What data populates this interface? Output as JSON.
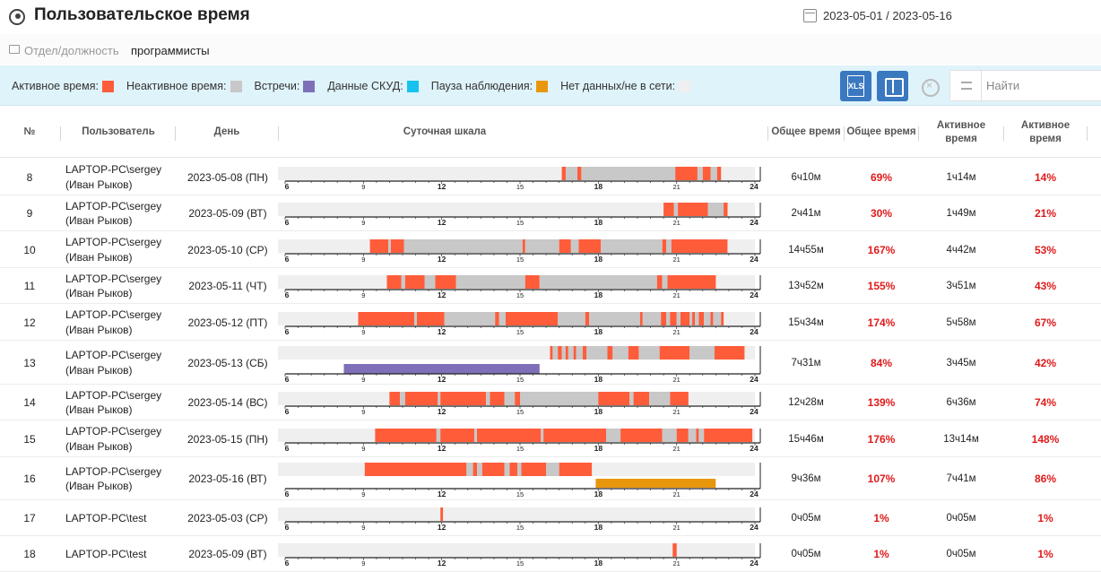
{
  "header": {
    "title": "Пользовательское время",
    "date_range": "2023-05-01 / 2023-05-16"
  },
  "filter": {
    "label": "Отдел/должность",
    "value": "программисты"
  },
  "legend": [
    {
      "label": "Активное время:",
      "color": "#ff5c3a"
    },
    {
      "label": "Неактивное время:",
      "color": "#c8c8c8"
    },
    {
      "label": "Встречи:",
      "color": "#7f6fb8"
    },
    {
      "label": "Данные СКУД:",
      "color": "#17c3ee"
    },
    {
      "label": "Пауза наблюдения:",
      "color": "#e8970c"
    },
    {
      "label": "Нет данных/не в сети:",
      "color": "#efefef"
    }
  ],
  "toolbar": {
    "xls_label": "XLS",
    "search_placeholder": "Найти"
  },
  "columns": {
    "num": "№",
    "user": "Пользователь",
    "day": "День",
    "scale": "Суточная шкала",
    "total": "Общее время",
    "total_pct": "Общее время",
    "active": "Активное время",
    "active_pct": "Активное время"
  },
  "colors": {
    "active": "#ff5c3a",
    "inactive": "#c8c8c8",
    "meeting": "#7f6fb8",
    "pause": "#e8970c",
    "nodata": "#efefef"
  },
  "scale_ticks": [
    "6",
    "9",
    "12",
    "15",
    "18",
    "21",
    "24"
  ],
  "rows": [
    {
      "num": "8",
      "user": "LAPTOP-PC\\sergey (Иван Рыков)",
      "user_line1": "LAPTOP-PC\\sergey",
      "user_line2": "(Иван Рыков)",
      "day": "2023-05-08 (ПН)",
      "total": "6ч10м",
      "total_pct": "69%",
      "active": "1ч14м",
      "active_pct": "14%",
      "segments": [
        [
          16.6,
          16.75,
          "active"
        ],
        [
          16.75,
          17.2,
          "inactive"
        ],
        [
          17.2,
          17.35,
          "active"
        ],
        [
          17.35,
          20.95,
          "inactive"
        ],
        [
          20.95,
          21.8,
          "active"
        ],
        [
          21.8,
          22.0,
          "inactive"
        ],
        [
          22.0,
          22.3,
          "active"
        ],
        [
          22.3,
          22.55,
          "inactive"
        ],
        [
          22.55,
          22.7,
          "active"
        ]
      ]
    },
    {
      "num": "9",
      "user": "LAPTOP-PC\\sergey (Иван Рыков)",
      "user_line1": "LAPTOP-PC\\sergey",
      "user_line2": "(Иван Рыков)",
      "day": "2023-05-09 (ВТ)",
      "total": "2ч41м",
      "total_pct": "30%",
      "active": "1ч49м",
      "active_pct": "21%",
      "segments": [
        [
          20.5,
          20.9,
          "active"
        ],
        [
          20.9,
          21.05,
          "inactive"
        ],
        [
          21.05,
          22.2,
          "active"
        ],
        [
          22.2,
          22.8,
          "inactive"
        ],
        [
          22.8,
          22.95,
          "active"
        ]
      ]
    },
    {
      "num": "10",
      "user": "LAPTOP-PC\\sergey (Иван Рыков)",
      "user_line1": "LAPTOP-PC\\sergey",
      "user_line2": "(Иван Рыков)",
      "day": "2023-05-10 (СР)",
      "total": "14ч55м",
      "total_pct": "167%",
      "active": "4ч42м",
      "active_pct": "53%",
      "segments": [
        [
          9.25,
          9.95,
          "active"
        ],
        [
          9.95,
          10.05,
          "inactive"
        ],
        [
          10.05,
          10.55,
          "active"
        ],
        [
          10.55,
          15.1,
          "inactive"
        ],
        [
          15.1,
          15.2,
          "active"
        ],
        [
          15.2,
          16.5,
          "inactive"
        ],
        [
          16.5,
          16.95,
          "active"
        ],
        [
          16.95,
          17.25,
          "inactive"
        ],
        [
          17.25,
          18.1,
          "active"
        ],
        [
          18.1,
          20.45,
          "inactive"
        ],
        [
          20.45,
          20.6,
          "active"
        ],
        [
          20.6,
          20.8,
          "inactive"
        ],
        [
          20.8,
          22.95,
          "active"
        ]
      ]
    },
    {
      "num": "11",
      "user": "LAPTOP-PC\\sergey (Иван Рыков)",
      "user_line1": "LAPTOP-PC\\sergey",
      "user_line2": "(Иван Рыков)",
      "day": "2023-05-11 (ЧТ)",
      "total": "13ч52м",
      "total_pct": "155%",
      "active": "3ч51м",
      "active_pct": "43%",
      "segments": [
        [
          9.9,
          10.45,
          "active"
        ],
        [
          10.45,
          10.6,
          "inactive"
        ],
        [
          10.6,
          11.35,
          "active"
        ],
        [
          11.35,
          11.75,
          "inactive"
        ],
        [
          11.75,
          12.55,
          "active"
        ],
        [
          12.55,
          15.2,
          "inactive"
        ],
        [
          15.2,
          15.75,
          "active"
        ],
        [
          15.75,
          20.25,
          "inactive"
        ],
        [
          20.25,
          20.45,
          "active"
        ],
        [
          20.45,
          20.65,
          "inactive"
        ],
        [
          20.65,
          22.5,
          "active"
        ]
      ]
    },
    {
      "num": "12",
      "user": "LAPTOP-PC\\sergey (Иван Рыков)",
      "user_line1": "LAPTOP-PC\\sergey",
      "user_line2": "(Иван Рыков)",
      "day": "2023-05-12 (ПТ)",
      "total": "15ч34м",
      "total_pct": "174%",
      "active": "5ч58м",
      "active_pct": "67%",
      "segments": [
        [
          8.8,
          10.95,
          "active"
        ],
        [
          10.95,
          11.05,
          "inactive"
        ],
        [
          11.05,
          12.1,
          "active"
        ],
        [
          12.1,
          14.05,
          "inactive"
        ],
        [
          14.05,
          14.2,
          "active"
        ],
        [
          14.2,
          14.45,
          "inactive"
        ],
        [
          14.45,
          16.45,
          "active"
        ],
        [
          16.45,
          17.5,
          "inactive"
        ],
        [
          17.5,
          17.65,
          "active"
        ],
        [
          17.65,
          19.6,
          "inactive"
        ],
        [
          19.6,
          19.7,
          "active"
        ],
        [
          19.7,
          20.4,
          "inactive"
        ],
        [
          20.4,
          20.6,
          "active"
        ],
        [
          20.6,
          20.75,
          "inactive"
        ],
        [
          20.75,
          21.0,
          "active"
        ],
        [
          21.0,
          21.15,
          "inactive"
        ],
        [
          21.15,
          21.5,
          "active"
        ],
        [
          21.5,
          21.6,
          "inactive"
        ],
        [
          21.6,
          21.7,
          "active"
        ],
        [
          21.7,
          21.85,
          "inactive"
        ],
        [
          21.85,
          22.05,
          "active"
        ],
        [
          22.05,
          22.3,
          "inactive"
        ],
        [
          22.3,
          22.4,
          "active"
        ],
        [
          22.4,
          22.7,
          "inactive"
        ],
        [
          22.7,
          22.8,
          "active"
        ]
      ]
    },
    {
      "num": "13",
      "user": "LAPTOP-PC\\sergey (Иван Рыков)",
      "user_line1": "LAPTOP-PC\\sergey",
      "user_line2": "(Иван Рыков)",
      "day": "2023-05-13 (СБ)",
      "total": "7ч31м",
      "total_pct": "84%",
      "active": "3ч45м",
      "active_pct": "42%",
      "segments": [
        [
          16.15,
          16.25,
          "active"
        ],
        [
          16.25,
          16.45,
          "inactive"
        ],
        [
          16.45,
          16.6,
          "active"
        ],
        [
          16.6,
          16.75,
          "inactive"
        ],
        [
          16.75,
          16.85,
          "active"
        ],
        [
          16.85,
          17.05,
          "inactive"
        ],
        [
          17.05,
          17.15,
          "active"
        ],
        [
          17.15,
          17.4,
          "inactive"
        ],
        [
          17.4,
          17.55,
          "active"
        ],
        [
          17.55,
          18.35,
          "inactive"
        ],
        [
          18.35,
          18.55,
          "active"
        ],
        [
          18.55,
          19.15,
          "inactive"
        ],
        [
          19.15,
          19.55,
          "active"
        ],
        [
          19.55,
          20.35,
          "inactive"
        ],
        [
          20.35,
          21.5,
          "active"
        ],
        [
          21.5,
          22.45,
          "inactive"
        ],
        [
          22.45,
          23.6,
          "active"
        ]
      ],
      "meetings": [
        [
          8.25,
          15.75
        ]
      ]
    },
    {
      "num": "14",
      "user": "LAPTOP-PC\\sergey (Иван Рыков)",
      "user_line1": "LAPTOP-PC\\sergey",
      "user_line2": "(Иван Рыков)",
      "day": "2023-05-14 (ВС)",
      "total": "12ч28м",
      "total_pct": "139%",
      "active": "6ч36м",
      "active_pct": "74%",
      "segments": [
        [
          10.0,
          10.4,
          "active"
        ],
        [
          10.4,
          10.6,
          "inactive"
        ],
        [
          10.6,
          11.85,
          "active"
        ],
        [
          11.85,
          11.95,
          "inactive"
        ],
        [
          11.95,
          13.7,
          "active"
        ],
        [
          13.7,
          13.85,
          "inactive"
        ],
        [
          13.85,
          14.4,
          "active"
        ],
        [
          14.4,
          14.8,
          "inactive"
        ],
        [
          14.8,
          15.0,
          "active"
        ],
        [
          15.0,
          18.0,
          "inactive"
        ],
        [
          18.0,
          19.2,
          "active"
        ],
        [
          19.2,
          19.35,
          "inactive"
        ],
        [
          19.35,
          19.95,
          "active"
        ],
        [
          19.95,
          20.75,
          "inactive"
        ],
        [
          20.75,
          21.45,
          "active"
        ]
      ]
    },
    {
      "num": "15",
      "user": "LAPTOP-PC\\sergey (Иван Рыков)",
      "user_line1": "LAPTOP-PC\\sergey",
      "user_line2": "(Иван Рыков)",
      "day": "2023-05-15 (ПН)",
      "total": "15ч46м",
      "total_pct": "176%",
      "active": "13ч14м",
      "active_pct": "148%",
      "segments": [
        [
          9.45,
          11.8,
          "active"
        ],
        [
          11.8,
          11.95,
          "inactive"
        ],
        [
          11.95,
          13.25,
          "active"
        ],
        [
          13.25,
          13.35,
          "inactive"
        ],
        [
          13.35,
          15.8,
          "active"
        ],
        [
          15.8,
          15.9,
          "inactive"
        ],
        [
          15.9,
          18.3,
          "active"
        ],
        [
          18.3,
          18.85,
          "inactive"
        ],
        [
          18.85,
          20.45,
          "active"
        ],
        [
          20.45,
          21.0,
          "inactive"
        ],
        [
          21.0,
          21.45,
          "active"
        ],
        [
          21.45,
          21.75,
          "inactive"
        ],
        [
          21.75,
          21.85,
          "active"
        ],
        [
          21.85,
          22.05,
          "inactive"
        ],
        [
          22.05,
          23.9,
          "active"
        ]
      ]
    },
    {
      "num": "16",
      "user": "LAPTOP-PC\\sergey (Иван Рыков)",
      "user_line1": "LAPTOP-PC\\sergey",
      "user_line2": "(Иван Рыков)",
      "day": "2023-05-16 (ВТ)",
      "total": "9ч36м",
      "total_pct": "107%",
      "active": "7ч41м",
      "active_pct": "86%",
      "segments": [
        [
          9.05,
          12.95,
          "active"
        ],
        [
          12.95,
          13.2,
          "inactive"
        ],
        [
          13.2,
          13.35,
          "active"
        ],
        [
          13.35,
          13.55,
          "inactive"
        ],
        [
          13.55,
          14.4,
          "active"
        ],
        [
          14.4,
          14.6,
          "inactive"
        ],
        [
          14.6,
          14.9,
          "active"
        ],
        [
          14.9,
          15.05,
          "inactive"
        ],
        [
          15.05,
          16.0,
          "active"
        ],
        [
          16.0,
          16.5,
          "inactive"
        ],
        [
          16.5,
          17.75,
          "active"
        ]
      ],
      "pauses": [
        [
          17.9,
          22.5
        ]
      ]
    },
    {
      "num": "17",
      "user": "LAPTOP-PC\\test",
      "user_line1": "LAPTOP-PC\\test",
      "user_line2": "",
      "day": "2023-05-03 (СР)",
      "total": "0ч05м",
      "total_pct": "1%",
      "active": "0ч05м",
      "active_pct": "1%",
      "segments": [
        [
          11.95,
          12.05,
          "active"
        ]
      ]
    },
    {
      "num": "18",
      "user": "LAPTOP-PC\\test",
      "user_line1": "LAPTOP-PC\\test",
      "user_line2": "",
      "day": "2023-05-09 (ВТ)",
      "total": "0ч05м",
      "total_pct": "1%",
      "active": "0ч05м",
      "active_pct": "1%",
      "segments": [
        [
          20.85,
          21.0,
          "active"
        ]
      ]
    }
  ]
}
